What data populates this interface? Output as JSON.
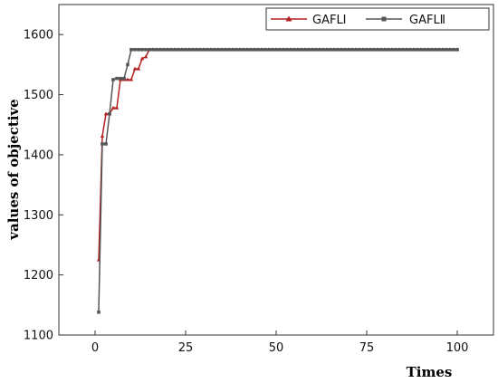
{
  "chart_data": {
    "type": "line",
    "title": "",
    "xlabel": "Times",
    "ylabel": "values of objective",
    "xlim": [
      -10,
      110
    ],
    "ylim": [
      1100,
      1650
    ],
    "xticks": [
      "0",
      "25",
      "50",
      "75",
      "100"
    ],
    "yticks": [
      "1100",
      "1200",
      "1300",
      "1400",
      "1500",
      "1600"
    ],
    "grid": false,
    "legend": "top-right",
    "series": [
      {
        "name": "GAFLⅠ",
        "color": "#b22222",
        "marker": "triangle",
        "x": [
          1,
          2,
          3,
          4,
          5,
          6,
          7,
          8,
          9,
          10,
          11,
          12,
          13,
          14,
          15,
          16,
          17,
          18,
          19,
          20,
          21,
          22,
          23,
          24,
          25,
          26,
          27,
          28,
          29,
          30,
          31,
          32,
          33,
          34,
          35,
          36,
          37,
          38,
          39,
          40,
          41,
          42,
          43,
          44,
          45,
          46,
          47,
          48,
          49,
          50,
          51,
          52,
          53,
          54,
          55,
          56,
          57,
          58,
          59,
          60,
          61,
          62,
          63,
          64,
          65,
          66,
          67,
          68,
          69,
          70,
          71,
          72,
          73,
          74,
          75,
          76,
          77,
          78,
          79,
          80,
          81,
          82,
          83,
          84,
          85,
          86,
          87,
          88,
          89,
          90,
          91,
          92,
          93,
          94,
          95,
          96,
          97,
          98,
          99,
          100
        ],
        "values": [
          1225,
          1431,
          1468,
          1468,
          1478,
          1478,
          1525,
          1525,
          1525,
          1525,
          1543,
          1543,
          1560,
          1563,
          1575,
          1575,
          1575,
          1575,
          1575,
          1575,
          1575,
          1575,
          1575,
          1575,
          1575,
          1575,
          1575,
          1575,
          1575,
          1575,
          1575,
          1575,
          1575,
          1575,
          1575,
          1575,
          1575,
          1575,
          1575,
          1575,
          1575,
          1575,
          1575,
          1575,
          1575,
          1575,
          1575,
          1575,
          1575,
          1575,
          1575,
          1575,
          1575,
          1575,
          1575,
          1575,
          1575,
          1575,
          1575,
          1575,
          1575,
          1575,
          1575,
          1575,
          1575,
          1575,
          1575,
          1575,
          1575,
          1575,
          1575,
          1575,
          1575,
          1575,
          1575,
          1575,
          1575,
          1575,
          1575,
          1575,
          1575,
          1575,
          1575,
          1575,
          1575,
          1575,
          1575,
          1575,
          1575,
          1575,
          1575,
          1575,
          1575,
          1575,
          1575,
          1575,
          1575,
          1575,
          1575,
          1575
        ]
      },
      {
        "name": "GAFLⅡ",
        "color": "#555555",
        "marker": "square",
        "x": [
          1,
          2,
          3,
          4,
          5,
          6,
          7,
          8,
          9,
          10,
          11,
          12,
          13,
          14,
          15,
          16,
          17,
          18,
          19,
          20,
          21,
          22,
          23,
          24,
          25,
          26,
          27,
          28,
          29,
          30,
          31,
          32,
          33,
          34,
          35,
          36,
          37,
          38,
          39,
          40,
          41,
          42,
          43,
          44,
          45,
          46,
          47,
          48,
          49,
          50,
          51,
          52,
          53,
          54,
          55,
          56,
          57,
          58,
          59,
          60,
          61,
          62,
          63,
          64,
          65,
          66,
          67,
          68,
          69,
          70,
          71,
          72,
          73,
          74,
          75,
          76,
          77,
          78,
          79,
          80,
          81,
          82,
          83,
          84,
          85,
          86,
          87,
          88,
          89,
          90,
          91,
          92,
          93,
          94,
          95,
          96,
          97,
          98,
          99,
          100
        ],
        "values": [
          1138,
          1418,
          1418,
          1468,
          1525,
          1527,
          1527,
          1527,
          1550,
          1575,
          1575,
          1575,
          1575,
          1575,
          1575,
          1575,
          1575,
          1575,
          1575,
          1575,
          1575,
          1575,
          1575,
          1575,
          1575,
          1575,
          1575,
          1575,
          1575,
          1575,
          1575,
          1575,
          1575,
          1575,
          1575,
          1575,
          1575,
          1575,
          1575,
          1575,
          1575,
          1575,
          1575,
          1575,
          1575,
          1575,
          1575,
          1575,
          1575,
          1575,
          1575,
          1575,
          1575,
          1575,
          1575,
          1575,
          1575,
          1575,
          1575,
          1575,
          1575,
          1575,
          1575,
          1575,
          1575,
          1575,
          1575,
          1575,
          1575,
          1575,
          1575,
          1575,
          1575,
          1575,
          1575,
          1575,
          1575,
          1575,
          1575,
          1575,
          1575,
          1575,
          1575,
          1575,
          1575,
          1575,
          1575,
          1575,
          1575,
          1575,
          1575,
          1575,
          1575,
          1575,
          1575,
          1575,
          1575,
          1575,
          1575,
          1575
        ]
      }
    ]
  }
}
